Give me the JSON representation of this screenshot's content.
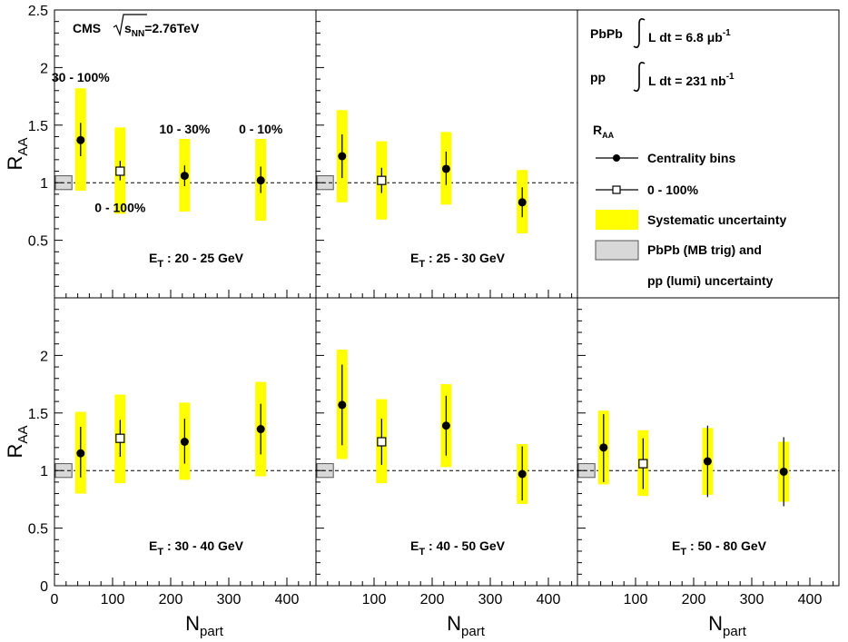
{
  "chart_data": {
    "type": "scatter",
    "experiment": "CMS",
    "energy_label": {
      "sqrt": "s",
      "sub": "NN",
      "value": "=2.76TeV"
    },
    "xlabel": {
      "main": "N",
      "sub": "part"
    },
    "ylabel": {
      "main": "R",
      "sub": "AA"
    },
    "xlim": [
      0,
      450
    ],
    "ylim": [
      0,
      2.5
    ],
    "x_ticks": [
      "0",
      "100",
      "200",
      "300",
      "400"
    ],
    "y_ticks": [
      "0",
      "0.5",
      "1",
      "1.5",
      "2",
      "2.5"
    ],
    "reference_line": 1.0,
    "lumi_band": {
      "x": [
        0,
        30
      ],
      "y": [
        0.94,
        1.06
      ]
    },
    "centrality_labels": [
      {
        "text": "30 - 100%",
        "x": 45,
        "y": 1.86
      },
      {
        "text": "0 - 100%",
        "x": 113,
        "y": 0.73
      },
      {
        "text": "10 - 30%",
        "x": 224,
        "y": 1.41
      },
      {
        "text": "0 - 10%",
        "x": 355,
        "y": 1.41
      }
    ],
    "panels": [
      {
        "et_prefix": "E",
        "et_sub": "T",
        "et_range": " : 20 - 25 GeV",
        "points": [
          {
            "x": 45,
            "y": 1.37,
            "stat": [
              1.23,
              1.52
            ],
            "sys": [
              0.93,
              1.82
            ],
            "type": "centrality"
          },
          {
            "x": 113,
            "y": 1.1,
            "stat": [
              1.02,
              1.19
            ],
            "sys": [
              0.73,
              1.48
            ],
            "type": "minbias"
          },
          {
            "x": 224,
            "y": 1.06,
            "stat": [
              0.97,
              1.15
            ],
            "sys": [
              0.75,
              1.38
            ],
            "type": "centrality"
          },
          {
            "x": 355,
            "y": 1.02,
            "stat": [
              0.91,
              1.14
            ],
            "sys": [
              0.67,
              1.38
            ],
            "type": "centrality"
          }
        ]
      },
      {
        "et_prefix": "E",
        "et_sub": "T",
        "et_range": " : 25 - 30 GeV",
        "points": [
          {
            "x": 45,
            "y": 1.23,
            "stat": [
              1.04,
              1.42
            ],
            "sys": [
              0.83,
              1.63
            ],
            "type": "centrality"
          },
          {
            "x": 113,
            "y": 1.02,
            "stat": [
              0.91,
              1.13
            ],
            "sys": [
              0.68,
              1.36
            ],
            "type": "minbias"
          },
          {
            "x": 224,
            "y": 1.12,
            "stat": [
              0.98,
              1.27
            ],
            "sys": [
              0.81,
              1.44
            ],
            "type": "centrality"
          },
          {
            "x": 355,
            "y": 0.83,
            "stat": [
              0.7,
              0.96
            ],
            "sys": [
              0.56,
              1.11
            ],
            "type": "centrality"
          }
        ]
      },
      {
        "et_prefix": "E",
        "et_sub": "T",
        "et_range": " : 30 - 40 GeV",
        "points": [
          {
            "x": 45,
            "y": 1.15,
            "stat": [
              0.94,
              1.38
            ],
            "sys": [
              0.8,
              1.51
            ],
            "type": "centrality"
          },
          {
            "x": 113,
            "y": 1.28,
            "stat": [
              1.12,
              1.44
            ],
            "sys": [
              0.89,
              1.66
            ],
            "type": "minbias"
          },
          {
            "x": 224,
            "y": 1.25,
            "stat": [
              1.06,
              1.45
            ],
            "sys": [
              0.92,
              1.59
            ],
            "type": "centrality"
          },
          {
            "x": 355,
            "y": 1.36,
            "stat": [
              1.14,
              1.58
            ],
            "sys": [
              0.95,
              1.77
            ],
            "type": "centrality"
          }
        ]
      },
      {
        "et_prefix": "E",
        "et_sub": "T",
        "et_range": " : 40 - 50 GeV",
        "points": [
          {
            "x": 45,
            "y": 1.57,
            "stat": [
              1.22,
              1.92
            ],
            "sys": [
              1.1,
              2.05
            ],
            "type": "centrality"
          },
          {
            "x": 113,
            "y": 1.25,
            "stat": [
              1.05,
              1.45
            ],
            "sys": [
              0.89,
              1.62
            ],
            "type": "minbias"
          },
          {
            "x": 224,
            "y": 1.39,
            "stat": [
              1.13,
              1.65
            ],
            "sys": [
              1.03,
              1.75
            ],
            "type": "centrality"
          },
          {
            "x": 355,
            "y": 0.97,
            "stat": [
              0.74,
              1.21
            ],
            "sys": [
              0.71,
              1.23
            ],
            "type": "centrality"
          }
        ]
      },
      {
        "et_prefix": "E",
        "et_sub": "T",
        "et_range": " : 50 - 80 GeV",
        "points": [
          {
            "x": 45,
            "y": 1.2,
            "stat": [
              0.9,
              1.49
            ],
            "sys": [
              0.88,
              1.52
            ],
            "type": "centrality"
          },
          {
            "x": 113,
            "y": 1.06,
            "stat": [
              0.84,
              1.28
            ],
            "sys": [
              0.78,
              1.35
            ],
            "type": "minbias"
          },
          {
            "x": 224,
            "y": 1.08,
            "stat": [
              0.77,
              1.39
            ],
            "sys": [
              0.79,
              1.37
            ],
            "type": "centrality"
          },
          {
            "x": 355,
            "y": 0.99,
            "stat": [
              0.69,
              1.29
            ],
            "sys": [
              0.73,
              1.25
            ],
            "type": "centrality"
          }
        ]
      }
    ],
    "lumi": [
      {
        "system": "PbPb",
        "lumi_text": "L dt = 6.8 μb",
        "sup": "-1"
      },
      {
        "system": "pp",
        "lumi_text": "L dt = 231 nb",
        "sup": "-1"
      }
    ],
    "legend": {
      "header_main": "R",
      "header_sub": "AA",
      "items": [
        {
          "label": "Centrality bins",
          "kind": "filled-circle"
        },
        {
          "label": "0 - 100%",
          "kind": "open-square"
        },
        {
          "label": "Systematic uncertainty",
          "kind": "yellow-box"
        },
        {
          "label": "PbPb (MB trig) and",
          "kind": "gray-box"
        },
        {
          "label": "pp (lumi) uncertainty",
          "kind": "none"
        }
      ]
    },
    "colors": {
      "systematic": "#ffff00",
      "lumi_fill": "#d8d8d8",
      "marker": "#000000"
    }
  }
}
